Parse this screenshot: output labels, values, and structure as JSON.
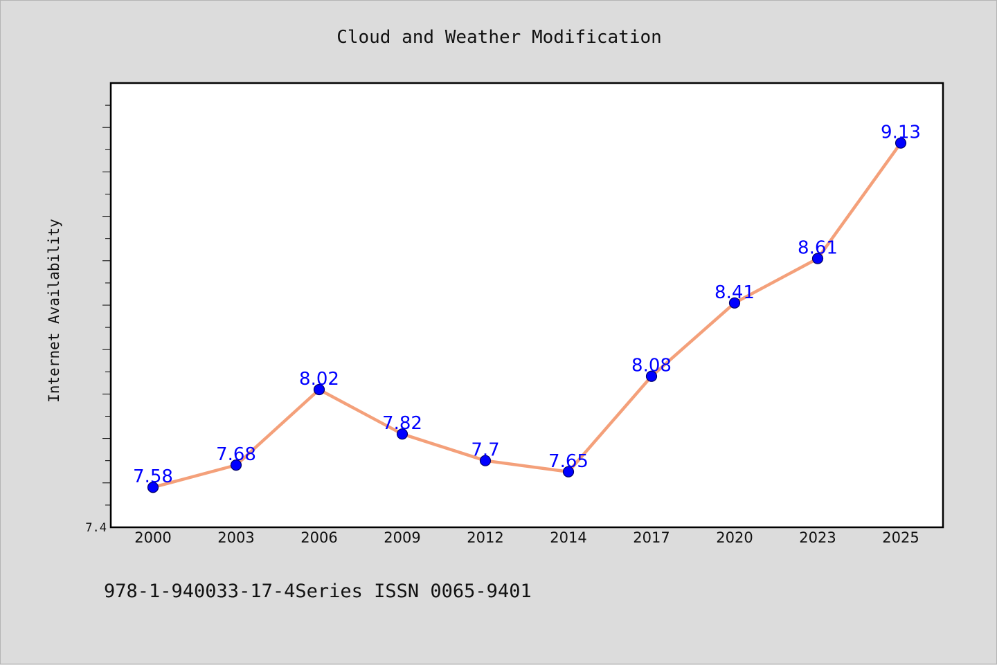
{
  "chart_data": {
    "type": "line",
    "title": "Cloud and Weather Modification",
    "xlabel": "",
    "ylabel": "Internet Availability",
    "x": [
      "2000",
      "2003",
      "2006",
      "2009",
      "2012",
      "2014",
      "2017",
      "2020",
      "2023",
      "2025"
    ],
    "series": [
      {
        "values": [
          7.58,
          7.68,
          8.02,
          7.82,
          7.7,
          7.65,
          8.08,
          8.41,
          8.61,
          9.13
        ]
      }
    ],
    "ylim": [
      7.4,
      9.4
    ],
    "y_tick_labels": [
      "7.4"
    ],
    "data_labels": [
      "7.58",
      "7.68",
      "8.02",
      "7.82",
      "7.7",
      "7.65",
      "8.08",
      "8.41",
      "8.61",
      "9.13"
    ],
    "grid": false,
    "legend": "none"
  },
  "footer": {
    "note": "978-1-940033-17-4Series ISSN 0065-9401"
  },
  "colors": {
    "background": "#dcdcdc",
    "plot_background": "#ffffff",
    "line": "#f4a07a",
    "marker_fill": "#0000ff",
    "marker_edge": "#000066",
    "data_label": "#0000ff"
  }
}
